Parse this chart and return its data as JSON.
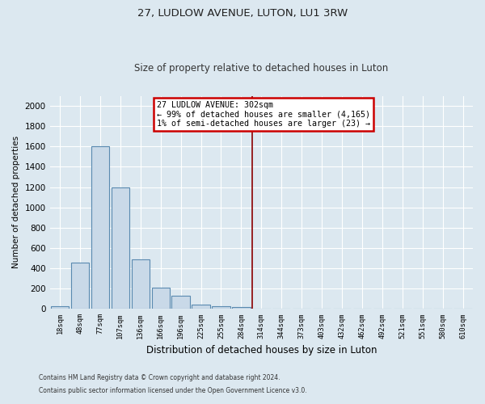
{
  "title": "27, LUDLOW AVENUE, LUTON, LU1 3RW",
  "subtitle": "Size of property relative to detached houses in Luton",
  "xlabel": "Distribution of detached houses by size in Luton",
  "ylabel": "Number of detached properties",
  "footnote1": "Contains HM Land Registry data © Crown copyright and database right 2024.",
  "footnote2": "Contains public sector information licensed under the Open Government Licence v3.0.",
  "bar_labels": [
    "18sqm",
    "48sqm",
    "77sqm",
    "107sqm",
    "136sqm",
    "166sqm",
    "196sqm",
    "225sqm",
    "255sqm",
    "284sqm",
    "314sqm",
    "344sqm",
    "373sqm",
    "403sqm",
    "432sqm",
    "462sqm",
    "492sqm",
    "521sqm",
    "551sqm",
    "580sqm",
    "610sqm"
  ],
  "bar_values": [
    30,
    460,
    1600,
    1200,
    490,
    210,
    130,
    40,
    30,
    20,
    0,
    0,
    0,
    0,
    0,
    0,
    0,
    0,
    0,
    0,
    0
  ],
  "bar_color": "#c9d9e8",
  "bar_edge_color": "#5a8ab0",
  "ylim": [
    0,
    2100
  ],
  "yticks": [
    0,
    200,
    400,
    600,
    800,
    1000,
    1200,
    1400,
    1600,
    1800,
    2000
  ],
  "property_line_x": 9.55,
  "property_line_color": "#8b0000",
  "annotation_title": "27 LUDLOW AVENUE: 302sqm",
  "annotation_line1": "← 99% of detached houses are smaller (4,165)",
  "annotation_line2": "1% of semi-detached houses are larger (23) →",
  "annotation_box_color": "#cc0000",
  "bg_color": "#dce8f0",
  "plot_bg_color": "#dce8f0",
  "grid_color": "#ffffff",
  "title_fontsize": 9.5,
  "subtitle_fontsize": 8.5
}
